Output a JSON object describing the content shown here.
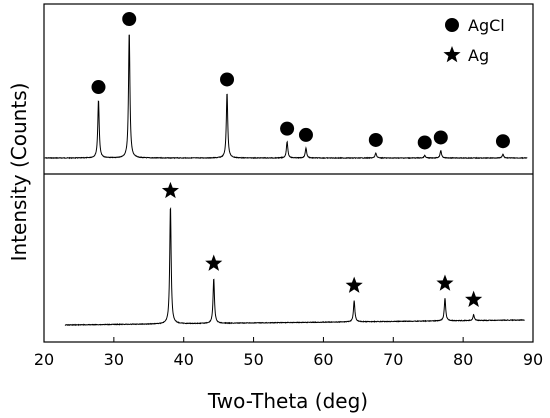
{
  "chart_data": {
    "type": "line",
    "xlabel": "Two-Theta (deg)",
    "ylabel": "Intensity (Counts)",
    "xlim": [
      20,
      90
    ],
    "xticks": [
      20,
      30,
      40,
      50,
      60,
      70,
      80,
      90
    ],
    "y_tick_labels": "none",
    "grid": false,
    "legend_position": "top-right",
    "legend": [
      {
        "label": "AgCl",
        "marker": "circle"
      },
      {
        "label": "Ag",
        "marker": "star"
      }
    ],
    "panels": [
      {
        "panel": "top",
        "peak_marker": "circle",
        "baseline": 1.0,
        "peaks": [
          {
            "x": 27.8,
            "height": 46
          },
          {
            "x": 32.2,
            "height": 100
          },
          {
            "x": 46.2,
            "height": 52
          },
          {
            "x": 54.8,
            "height": 13
          },
          {
            "x": 57.5,
            "height": 8
          },
          {
            "x": 67.5,
            "height": 4
          },
          {
            "x": 74.5,
            "height": 2
          },
          {
            "x": 76.8,
            "height": 6
          },
          {
            "x": 85.7,
            "height": 3
          }
        ],
        "marked_peaks_x": [
          27.8,
          32.2,
          46.2,
          54.8,
          57.5,
          67.5,
          74.5,
          76.8,
          85.7
        ]
      },
      {
        "panel": "bottom",
        "peak_marker": "star",
        "baseline": 1.0,
        "peaks": [
          {
            "x": 38.1,
            "height": 100
          },
          {
            "x": 44.3,
            "height": 38
          },
          {
            "x": 64.4,
            "height": 18
          },
          {
            "x": 77.4,
            "height": 19
          },
          {
            "x": 81.5,
            "height": 5
          }
        ],
        "marked_peaks_x": [
          38.1,
          44.3,
          64.4,
          77.4,
          81.5
        ]
      }
    ]
  }
}
